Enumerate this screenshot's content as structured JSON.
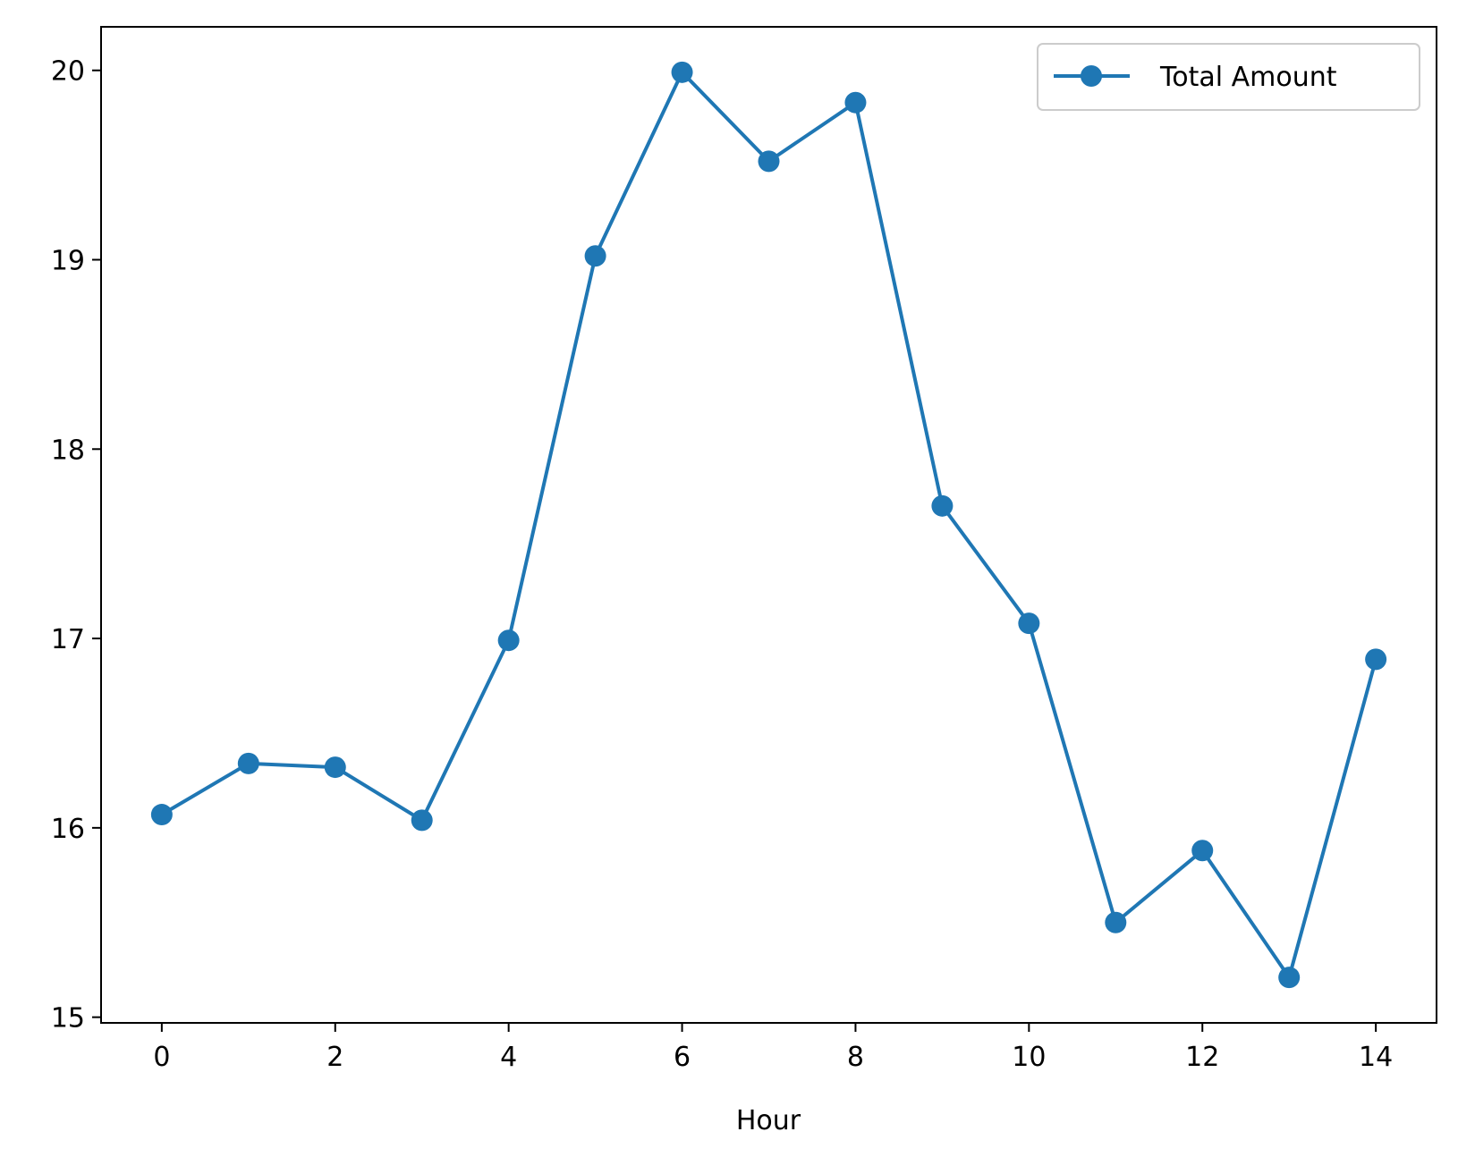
{
  "chart_data": {
    "type": "line",
    "title": "",
    "xlabel": "Hour",
    "ylabel": "",
    "xlim": [
      -0.7,
      14.7
    ],
    "ylim": [
      14.97,
      20.23
    ],
    "xticks": [
      0,
      2,
      4,
      6,
      8,
      10,
      12,
      14
    ],
    "yticks": [
      15,
      16,
      17,
      18,
      19,
      20
    ],
    "grid": false,
    "legend_position": "top-right",
    "x": [
      0,
      1,
      2,
      3,
      4,
      5,
      6,
      7,
      8,
      9,
      10,
      11,
      12,
      13,
      14
    ],
    "series": [
      {
        "name": "Total Amount",
        "color": "#1f77b4",
        "marker": "circle",
        "values": [
          16.07,
          16.34,
          16.32,
          16.04,
          16.99,
          19.02,
          19.99,
          19.52,
          19.83,
          17.7,
          17.08,
          15.5,
          15.88,
          15.21,
          16.89
        ]
      }
    ]
  }
}
